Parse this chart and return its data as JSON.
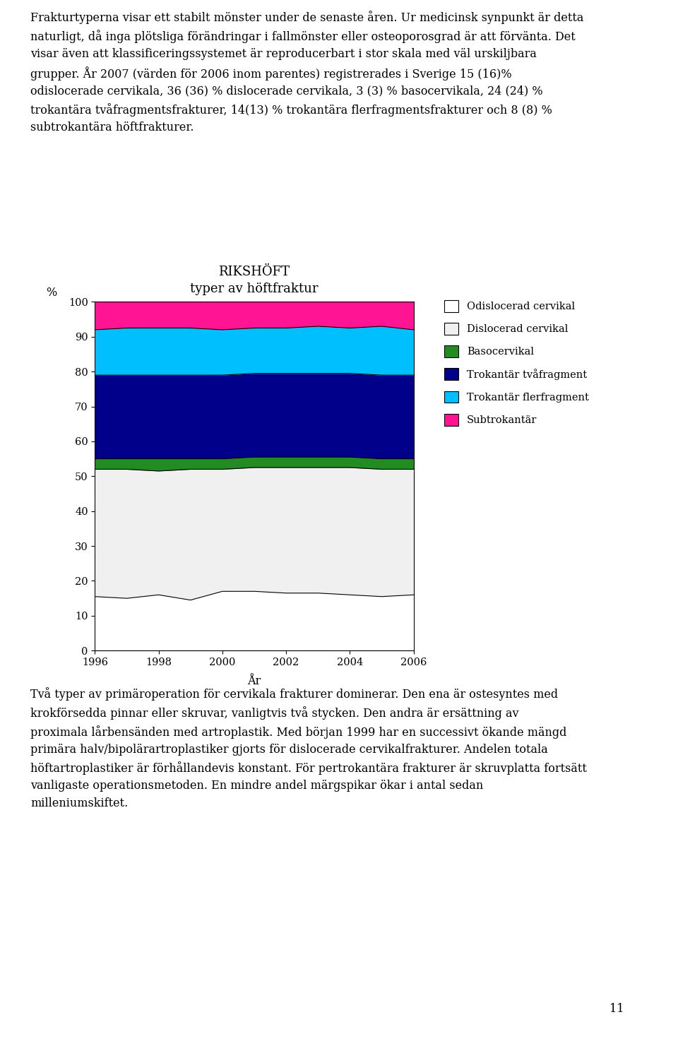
{
  "title_line1": "RIKSHÖFT",
  "title_line2": "typer av höftfraktur",
  "xlabel": "År",
  "ylabel": "%",
  "years": [
    1996,
    1997,
    1998,
    1999,
    2000,
    2001,
    2002,
    2003,
    2004,
    2005,
    2006
  ],
  "odislocerad_cervikal": [
    15.5,
    15.0,
    16.0,
    14.5,
    17.0,
    17.0,
    16.5,
    16.5,
    16.0,
    15.5,
    16.0
  ],
  "dislocerad_cervikal": [
    36.5,
    37.0,
    35.5,
    37.5,
    35.0,
    35.5,
    36.0,
    36.0,
    36.5,
    36.5,
    36.0
  ],
  "basocervikal": [
    3.0,
    3.0,
    3.5,
    3.0,
    3.0,
    3.0,
    3.0,
    3.0,
    3.0,
    3.0,
    3.0
  ],
  "trokantara_tvafragment": [
    24.0,
    24.0,
    24.0,
    24.0,
    24.0,
    24.0,
    24.0,
    24.0,
    24.0,
    24.0,
    24.0
  ],
  "trokantara_flerfragment": [
    13.0,
    13.5,
    13.5,
    13.5,
    13.0,
    13.0,
    13.0,
    13.5,
    13.0,
    14.0,
    13.0
  ],
  "subtrokantara": [
    8.0,
    7.5,
    7.5,
    7.5,
    8.0,
    7.5,
    7.5,
    7.0,
    7.5,
    7.0,
    8.0
  ],
  "color_odislocerad": "#ffffff",
  "color_dislocerad": "#f0f0f0",
  "color_basocervikal": "#228B22",
  "color_trokantara_tva": "#00008B",
  "color_trokantara_fler": "#00BFFF",
  "color_subtrokantara": "#FF1493",
  "legend_labels": [
    "Odislocerad cervikal",
    "Dislocerad cervikal",
    "Basocervikal",
    "Trokantär tvåfragment",
    "Trokantär flerfragment",
    "Subtrokantär"
  ],
  "ylim": [
    0,
    100
  ],
  "yticks": [
    0,
    10,
    20,
    30,
    40,
    50,
    60,
    70,
    80,
    90,
    100
  ],
  "page_number": "11",
  "text_top_lines": [
    "Frakturtyperna visar ett stabilt mönster under de senaste åren. Ur medicinsk synpunkt är detta",
    "naturligt, då inga plötsliga förändringar i fallmönster eller osteoporosgrad är att förvänta. Det",
    "visar även att klassificeringssystemet är reproducerbart i stor skala med väl urskiljbara",
    "grupper. År 2007 (värden för 2006 inom parentes) registrerades i Sverige 15 (16)%",
    "odislocerade cervikala, 36 (36) % dislocerade cervikala, 3 (3) % basocervikala, 24 (24) %",
    "trokantära tvåfragmentsfrakturer, 14(13) % trokantära flerfragmentsfrakturer och 8 (8) %",
    "subtrokantära höftfrakturer."
  ],
  "text_bottom_lines": [
    "Två typer av primäroperation för cervikala frakturer dominerar. Den ena är ostesyntes med",
    "krokförsedda pinnar eller skruvar, vanligtvis två stycken. Den andra är ersättning av",
    "proximala lårbensänden med artroplastik. Med början 1999 har en successivt ökande mängd",
    "primära halv/bipolärartroplastiker gjorts för dislocerade cervikalfrakturer. Andelen totala",
    "höftartroplastiker är förhållandevis konstant. För pertrokantära frakturer är skruvplatta fortsätt",
    "vanligaste operationsmetoden. En mindre andel märgspikar ökar i antal sedan",
    "milleniumskiftet."
  ]
}
